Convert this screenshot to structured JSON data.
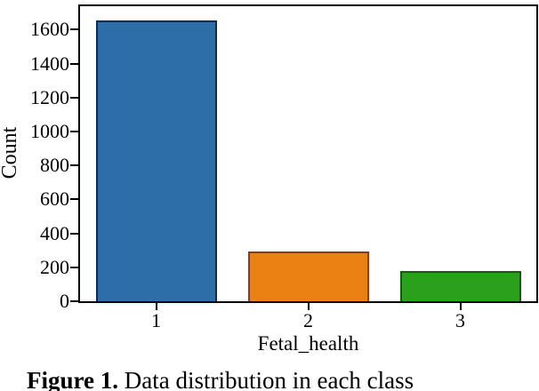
{
  "figure_caption": {
    "label": "Figure 1.",
    "text": " Data distribution in each class"
  },
  "chart_data": {
    "type": "bar",
    "title": "",
    "categories": [
      "1",
      "2",
      "3"
    ],
    "values": [
      1655,
      295,
      176
    ],
    "xlabel": "Fetal_health",
    "ylabel": "Count",
    "ylim": [
      0,
      1738
    ],
    "yticks": [
      0,
      200,
      400,
      600,
      800,
      1000,
      1200,
      1400,
      1600
    ],
    "grid": false,
    "legend": false,
    "bar_fill_colors": [
      "#2d6ea9",
      "#ec8113",
      "#2aa01c"
    ],
    "bar_edge_colors": [
      "#0d2b56",
      "#8a3e0a",
      "#135c0c"
    ],
    "axis_color": "#000000",
    "text_color": "#000000",
    "background_color": "#ffffff"
  }
}
